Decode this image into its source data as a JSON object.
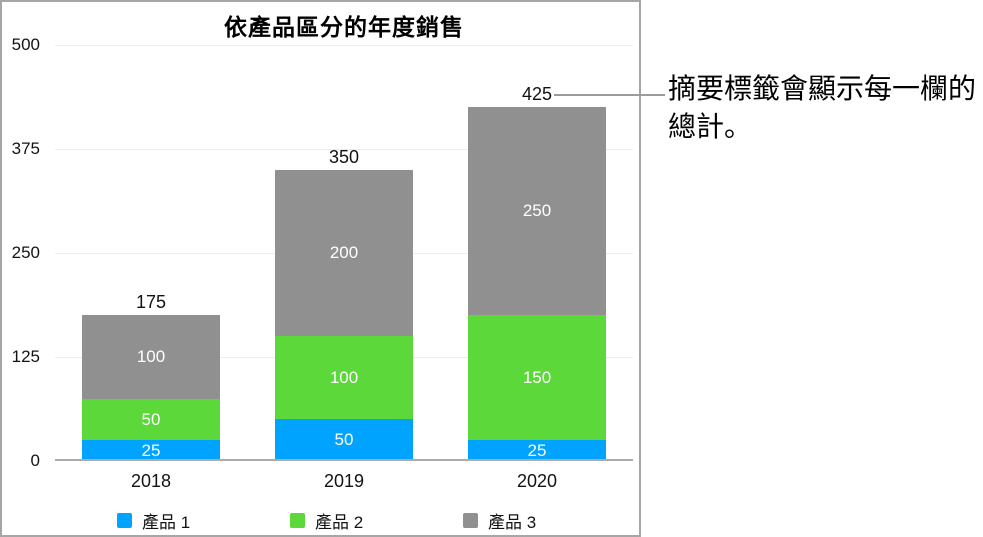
{
  "figure": {
    "callout": {
      "text": "摘要標籤會顯示每一欄的總計。"
    }
  },
  "chart_data": {
    "type": "bar",
    "stacked": true,
    "title": "依產品區分的年度銷售",
    "categories": [
      "2018",
      "2019",
      "2020"
    ],
    "series": [
      {
        "name": "產品 1",
        "color": "#00A4FF",
        "values": [
          25,
          50,
          25
        ]
      },
      {
        "name": "產品 2",
        "color": "#5CD83A",
        "values": [
          50,
          100,
          150
        ]
      },
      {
        "name": "產品 3",
        "color": "#909090",
        "values": [
          100,
          200,
          250
        ]
      }
    ],
    "totals": [
      175,
      350,
      425
    ],
    "y_ticks": [
      0,
      125,
      250,
      375,
      500
    ],
    "ylim": [
      0,
      500
    ],
    "xlabel": "",
    "ylabel": "",
    "grid": true,
    "legend_position": "bottom",
    "colors": {
      "axis_line": "#ababab",
      "gridline": "#ececec",
      "panel_border": "#a6a6a6",
      "callout_line": "#9b9b9b",
      "segment_label": "#ffffff",
      "text": "#131313"
    }
  }
}
